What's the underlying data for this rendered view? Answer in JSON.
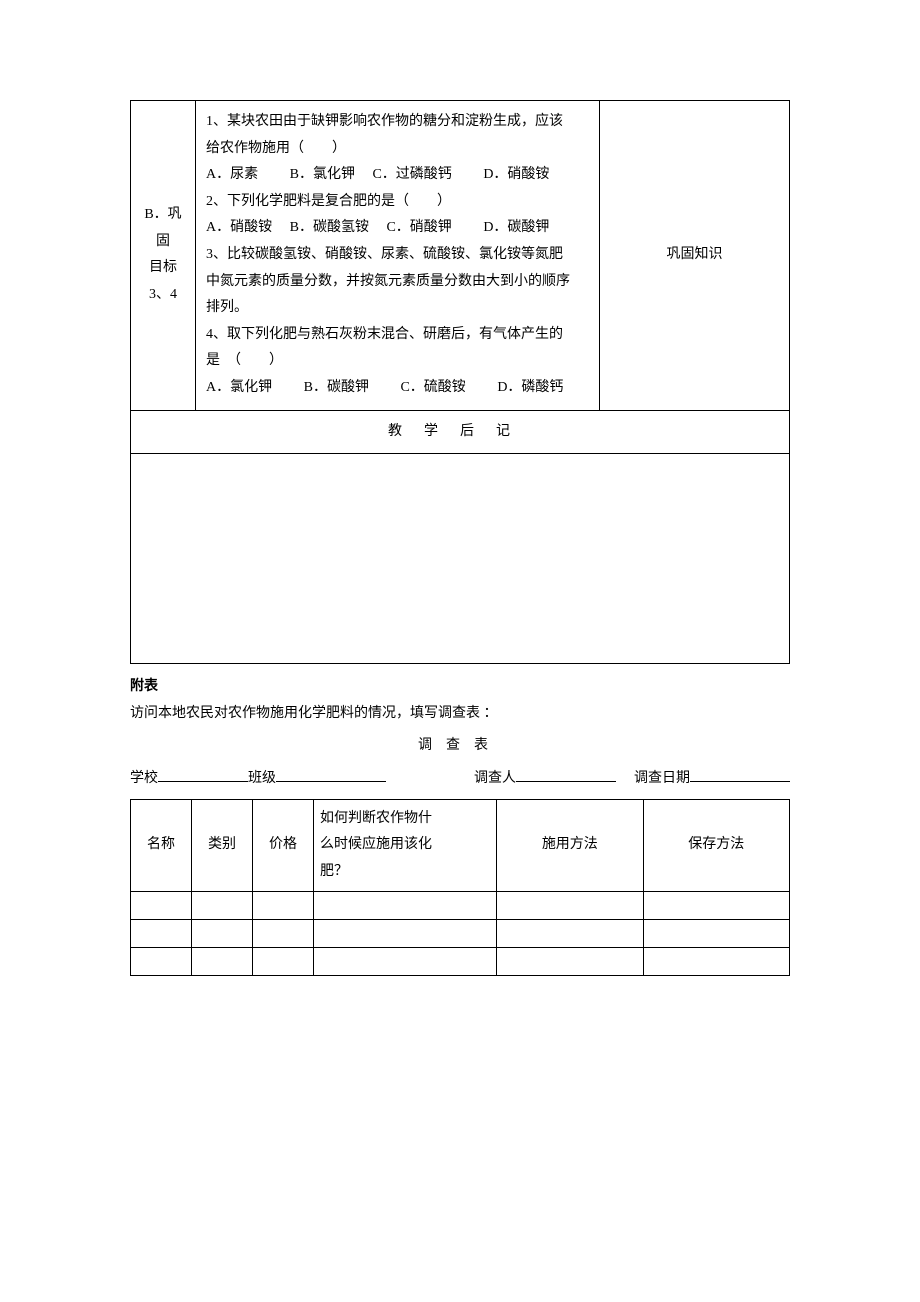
{
  "main_table": {
    "left_label_line1": "B．巩固",
    "left_label_line2": "目标 3、4",
    "q1": {
      "stem1": "1、某块农田由于缺钾影响农作物的糖分和淀粉生成，应该",
      "stem2": "给农作物施用（　　）",
      "A": "A．尿素",
      "B": "B．氯化钾",
      "C": "C．过磷酸钙",
      "D": "D．硝酸铵"
    },
    "q2": {
      "stem": "2、下列化学肥料是复合肥的是（　　）",
      "A": "A．硝酸铵",
      "B": "B．碳酸氢铵",
      "C": "C．硝酸钾",
      "D": "D．碳酸钾"
    },
    "q3": {
      "line1": "3、比较碳酸氢铵、硝酸铵、尿素、硫酸铵、氯化铵等氮肥",
      "line2": "中氮元素的质量分数，并按氮元素质量分数由大到小的顺序",
      "line3": "排列。"
    },
    "q4": {
      "line1": "4、取下列化肥与熟石灰粉末混合、研磨后，有气体产生的",
      "line2": "是　（　　）",
      "A": "A．氯化钾",
      "B": "B．碳酸钾",
      "C": "C．硫酸铵",
      "D": "D．磷酸钙"
    },
    "right_note": "巩固知识",
    "postscript": "教学后记"
  },
  "appendix": {
    "label": "附表",
    "intro": "访问本地农民对农作物施用化学肥料的情况，填写调查表 ：",
    "survey_title": "调查表",
    "form": {
      "school_label": "学校",
      "class_label": "班级",
      "investigator_label": "调查人",
      "date_label": "调查日期"
    },
    "survey_columns": {
      "c1": "名称",
      "c2": "类别",
      "c3": "价格",
      "c4a": "如何判断农作物什",
      "c4b": "么时候应施用该化",
      "c4c": "肥？",
      "c5": "施用方法",
      "c6": "保存方法"
    },
    "underline_widths": {
      "school": 90,
      "class": 110,
      "investigator": 100,
      "date": 100
    }
  },
  "style": {
    "text_color": "#000000",
    "border_color": "#000000",
    "background": "#ffffff",
    "font_size_pt": 10.5,
    "col_widths_survey": [
      50,
      50,
      50,
      150,
      120,
      120
    ]
  }
}
